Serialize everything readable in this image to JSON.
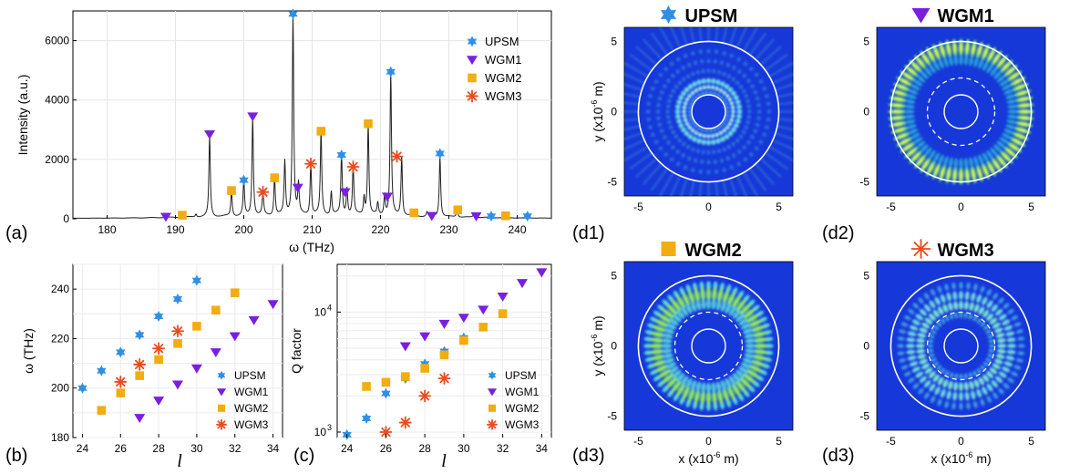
{
  "colors": {
    "upsm": "#2f8fe6",
    "wgm1": "#7a1fe0",
    "wgm2": "#f2ad12",
    "wgm3": "#ea4a1e",
    "field_bg": "#1638d8"
  },
  "chart_data": [
    {
      "id": "a",
      "type": "line",
      "panel_label": "(a)",
      "xlabel": "ω (THz)",
      "ylabel": "Intensity (a.u.)",
      "xlim": [
        175,
        245
      ],
      "ylim": [
        0,
        7000
      ],
      "xticks": [
        180,
        190,
        200,
        210,
        220,
        230,
        240
      ],
      "yticks": [
        0,
        2000,
        4000,
        6000
      ],
      "legend": [
        "UPSM",
        "WGM1",
        "WGM2",
        "WGM3"
      ],
      "spectrum_peaks": [
        [
          188.6,
          40
        ],
        [
          190.8,
          60
        ],
        [
          193.0,
          100
        ],
        [
          195.0,
          2750
        ],
        [
          198.2,
          850
        ],
        [
          200.0,
          1200
        ],
        [
          201.3,
          3350
        ],
        [
          202.8,
          800
        ],
        [
          204.5,
          1300
        ],
        [
          206.0,
          1800
        ],
        [
          207.2,
          6800
        ],
        [
          208.0,
          1000
        ],
        [
          209.8,
          1750
        ],
        [
          211.3,
          2850
        ],
        [
          212.8,
          800
        ],
        [
          214.3,
          2050
        ],
        [
          215.1,
          900
        ],
        [
          216.0,
          1650
        ],
        [
          217.6,
          600
        ],
        [
          218.2,
          3100
        ],
        [
          219.6,
          400
        ],
        [
          220.6,
          700
        ],
        [
          221.5,
          4850
        ],
        [
          223.1,
          2000
        ],
        [
          224.9,
          150
        ],
        [
          226.8,
          150
        ],
        [
          228.7,
          2050
        ],
        [
          231.2,
          250
        ],
        [
          233.6,
          80
        ],
        [
          236.2,
          60
        ]
      ],
      "series": [
        {
          "name": "UPSM",
          "marker": "star6",
          "points": [
            [
              200.0,
              1300
            ],
            [
              207.2,
              6900
            ],
            [
              214.3,
              2150
            ],
            [
              221.5,
              4950
            ],
            [
              228.7,
              2200
            ],
            [
              236.2,
              90
            ],
            [
              241.5,
              90
            ]
          ]
        },
        {
          "name": "WGM1",
          "marker": "tri-down",
          "points": [
            [
              188.6,
              70
            ],
            [
              195.0,
              2850
            ],
            [
              201.3,
              3450
            ],
            [
              207.9,
              1050
            ],
            [
              214.8,
              900
            ],
            [
              221.0,
              750
            ],
            [
              227.5,
              100
            ],
            [
              234.0,
              90
            ]
          ]
        },
        {
          "name": "WGM2",
          "marker": "square",
          "points": [
            [
              191.0,
              120
            ],
            [
              198.2,
              950
            ],
            [
              204.5,
              1380
            ],
            [
              211.3,
              2950
            ],
            [
              218.2,
              3200
            ],
            [
              224.9,
              200
            ],
            [
              231.3,
              300
            ],
            [
              238.3,
              100
            ]
          ]
        },
        {
          "name": "WGM3",
          "marker": "asterisk",
          "points": [
            [
              202.8,
              900
            ],
            [
              209.8,
              1850
            ],
            [
              216.0,
              1750
            ],
            [
              222.4,
              2100
            ]
          ]
        }
      ]
    },
    {
      "id": "b",
      "type": "scatter",
      "panel_label": "(b)",
      "xlabel": "l",
      "ylabel": "ω (THz)",
      "xlim": [
        23.5,
        34.5
      ],
      "ylim": [
        180,
        250
      ],
      "xticks": [
        24,
        26,
        28,
        30,
        32,
        34
      ],
      "yticks": [
        180,
        200,
        220,
        240
      ],
      "legend": [
        "UPSM",
        "WGM1",
        "WGM2",
        "WGM3"
      ],
      "series": [
        {
          "name": "UPSM",
          "marker": "star6",
          "x": [
            24,
            25,
            26,
            27,
            28,
            29,
            30
          ],
          "y": [
            200,
            207,
            214.5,
            221.5,
            229,
            236,
            243.5
          ]
        },
        {
          "name": "WGM1",
          "marker": "tri-down",
          "x": [
            27,
            28,
            29,
            30,
            31,
            32,
            33,
            34
          ],
          "y": [
            188,
            195,
            201.5,
            208,
            214.5,
            221,
            227.5,
            234
          ]
        },
        {
          "name": "WGM2",
          "marker": "square",
          "x": [
            25,
            26,
            27,
            28,
            29,
            30,
            31,
            32
          ],
          "y": [
            191,
            198,
            205,
            211.5,
            218,
            225,
            231.5,
            238.5
          ]
        },
        {
          "name": "WGM3",
          "marker": "asterisk",
          "x": [
            26,
            27,
            28,
            29
          ],
          "y": [
            202.5,
            209.5,
            216,
            223
          ]
        }
      ]
    },
    {
      "id": "c",
      "type": "scatter",
      "panel_label": "(c)",
      "xlabel": "l",
      "ylabel": "Q factor",
      "yscale": "log",
      "xlim": [
        23.5,
        34.5
      ],
      "ylim": [
        900,
        25000
      ],
      "xticks": [
        24,
        26,
        28,
        30,
        32,
        34
      ],
      "yticks_log": [
        1000,
        10000
      ],
      "ytick_labels": [
        {
          "base": "10",
          "exp": "3"
        },
        {
          "base": "10",
          "exp": "4"
        }
      ],
      "legend": [
        "UPSM",
        "WGM1",
        "WGM2",
        "WGM3"
      ],
      "series": [
        {
          "name": "UPSM",
          "marker": "star6",
          "x": [
            24,
            25,
            26,
            27,
            28,
            29,
            30
          ],
          "y": [
            950,
            1300,
            2100,
            2800,
            3700,
            4700,
            6100
          ]
        },
        {
          "name": "WGM1",
          "marker": "tri-down",
          "x": [
            27,
            28,
            29,
            30,
            31,
            32,
            33,
            34
          ],
          "y": [
            5200,
            6300,
            8000,
            9000,
            10500,
            13500,
            17500,
            21500
          ]
        },
        {
          "name": "WGM2",
          "marker": "square",
          "x": [
            25,
            26,
            27,
            28,
            29,
            30,
            31,
            32
          ],
          "y": [
            2400,
            2600,
            2900,
            3400,
            4400,
            5800,
            7500,
            9700
          ]
        },
        {
          "name": "WGM3",
          "marker": "asterisk",
          "x": [
            26,
            27,
            28,
            29
          ],
          "y": [
            1000,
            1200,
            2000,
            2800
          ]
        }
      ]
    }
  ],
  "field_maps": [
    {
      "id": "d1",
      "panel_label": "(d1)",
      "title": "UPSM",
      "marker": "star6",
      "ylabel": "y (x10",
      "xlabel": "",
      "unit_exp": "-6",
      "unit_tail": " m)",
      "ticks": [
        "-5",
        "0",
        "5"
      ],
      "pattern": "upsm"
    },
    {
      "id": "d2",
      "panel_label": "(d2)",
      "title": "WGM1",
      "marker": "tri-down",
      "ylabel": "",
      "xlabel": "",
      "unit_exp": "-6",
      "unit_tail": " m)",
      "ticks": [
        "-5",
        "0",
        "5"
      ],
      "pattern": "wgm1"
    },
    {
      "id": "d3a",
      "panel_label": "(d3)",
      "title": "WGM2",
      "marker": "square",
      "ylabel": "y (x10",
      "xlabel": "x (x10",
      "unit_exp": "-6",
      "unit_tail": " m)",
      "ticks": [
        "-5",
        "0",
        "5"
      ],
      "pattern": "wgm2"
    },
    {
      "id": "d3b",
      "panel_label": "(d3)",
      "title": "WGM3",
      "marker": "asterisk",
      "ylabel": "",
      "xlabel": "x (x10",
      "unit_exp": "-6",
      "unit_tail": " m)",
      "ticks": [
        "-5",
        "0",
        "5"
      ],
      "pattern": "wgm3"
    }
  ]
}
